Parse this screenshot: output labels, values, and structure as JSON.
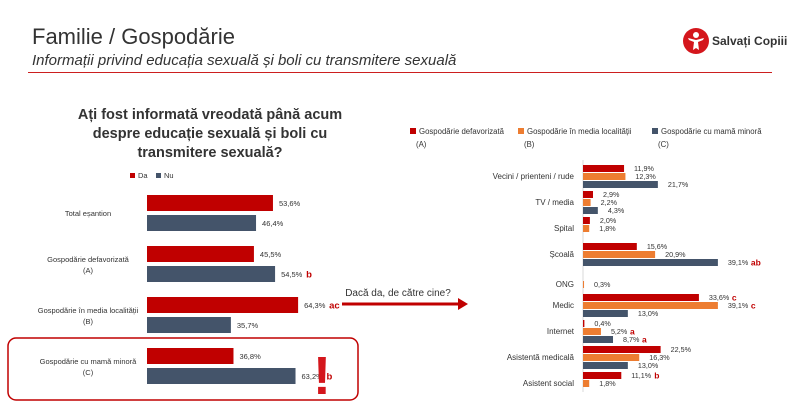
{
  "header": {
    "title": "Familie / Gospodărie",
    "subtitle": "Informații privind educația sexuală și boli cu transmitere sexuală",
    "logo_text": "Salvați Copiii"
  },
  "colors": {
    "red": "#c00000",
    "orange": "#ed7d31",
    "slate": "#44546a",
    "accent": "#cc1f1f"
  },
  "chart_data": [
    {
      "type": "bar",
      "orientation": "horizontal",
      "title": "Ați fost informată vreodată până acum despre educație sexuală și boli cu transmitere sexuală?",
      "title_lines": [
        "Ați fost informată vreodată până acum",
        "despre educație sexuală și boli cu",
        "transmitere sexuală?"
      ],
      "legend_placement": "top-left",
      "categories": [
        {
          "line1": "Total eșantion",
          "line2": ""
        },
        {
          "line1": "Gospodărie defavorizată",
          "line2": "(A)"
        },
        {
          "line1": "Gospodărie în media localității",
          "line2": "(B)"
        },
        {
          "line1": "Gospodărie cu mamă minoră",
          "line2": "(C)"
        }
      ],
      "series": [
        {
          "name": "Da",
          "color": "#c00000",
          "values": [
            53.6,
            45.5,
            64.3,
            36.8
          ],
          "labels": [
            "53,6%",
            "45,5%",
            "64,3%",
            "36,8%"
          ],
          "marks": [
            "",
            "",
            "ac",
            ""
          ]
        },
        {
          "name": "Nu",
          "color": "#44546a",
          "values": [
            46.4,
            54.5,
            35.7,
            63.2
          ],
          "labels": [
            "46,4%",
            "54,5%",
            "35,7%",
            "63,2%"
          ],
          "marks": [
            "",
            "b",
            "",
            "b"
          ]
        }
      ],
      "xlim": [
        0,
        100
      ],
      "highlight_category": 3,
      "highlight_symbol": "!"
    },
    {
      "type": "bar",
      "orientation": "horizontal",
      "title": "Dacă da, de către cine?",
      "legend_placement": "top",
      "categories": [
        "Vecini / prienteni / rude",
        "TV / media",
        "Spital",
        "Școală",
        "ONG",
        "Medic",
        "Internet",
        "Asistentă medicală",
        "Asistent social"
      ],
      "series": [
        {
          "name": "Gospodărie defavorizată",
          "code": "(A)",
          "color": "#c00000",
          "values": [
            11.9,
            2.9,
            2.0,
            15.6,
            null,
            33.6,
            0.4,
            22.5,
            11.1
          ],
          "labels": [
            "11,9%",
            "2,9%",
            "2,0%",
            "15,6%",
            "",
            "33,6%",
            "0,4%",
            "22,5%",
            "11,1%"
          ],
          "marks": [
            "",
            "",
            "",
            "",
            "",
            "c",
            "",
            "",
            "b"
          ]
        },
        {
          "name": "Gospodărie în media localității",
          "code": "(B)",
          "color": "#ed7d31",
          "values": [
            12.3,
            2.2,
            1.8,
            20.9,
            0.3,
            39.1,
            5.2,
            16.3,
            1.8
          ],
          "labels": [
            "12,3%",
            "2,2%",
            "1,8%",
            "20,9%",
            "0,3%",
            "39,1%",
            "5,2%",
            "16,3%",
            "1,8%"
          ],
          "marks": [
            "",
            "",
            "",
            "",
            "",
            "c",
            "a",
            "",
            ""
          ]
        },
        {
          "name": "Gospodărie cu mamă minoră",
          "code": "(C)",
          "color": "#44546a",
          "values": [
            21.7,
            4.3,
            null,
            39.1,
            null,
            13.0,
            8.7,
            13.0,
            null
          ],
          "labels": [
            "21,7%",
            "4,3%",
            "",
            "39,1%",
            "",
            "13,0%",
            "8,7%",
            "13,0%",
            ""
          ],
          "marks": [
            "",
            "",
            "",
            "ab",
            "",
            "",
            "a",
            "",
            ""
          ]
        }
      ],
      "xlim": [
        0,
        50
      ]
    }
  ]
}
